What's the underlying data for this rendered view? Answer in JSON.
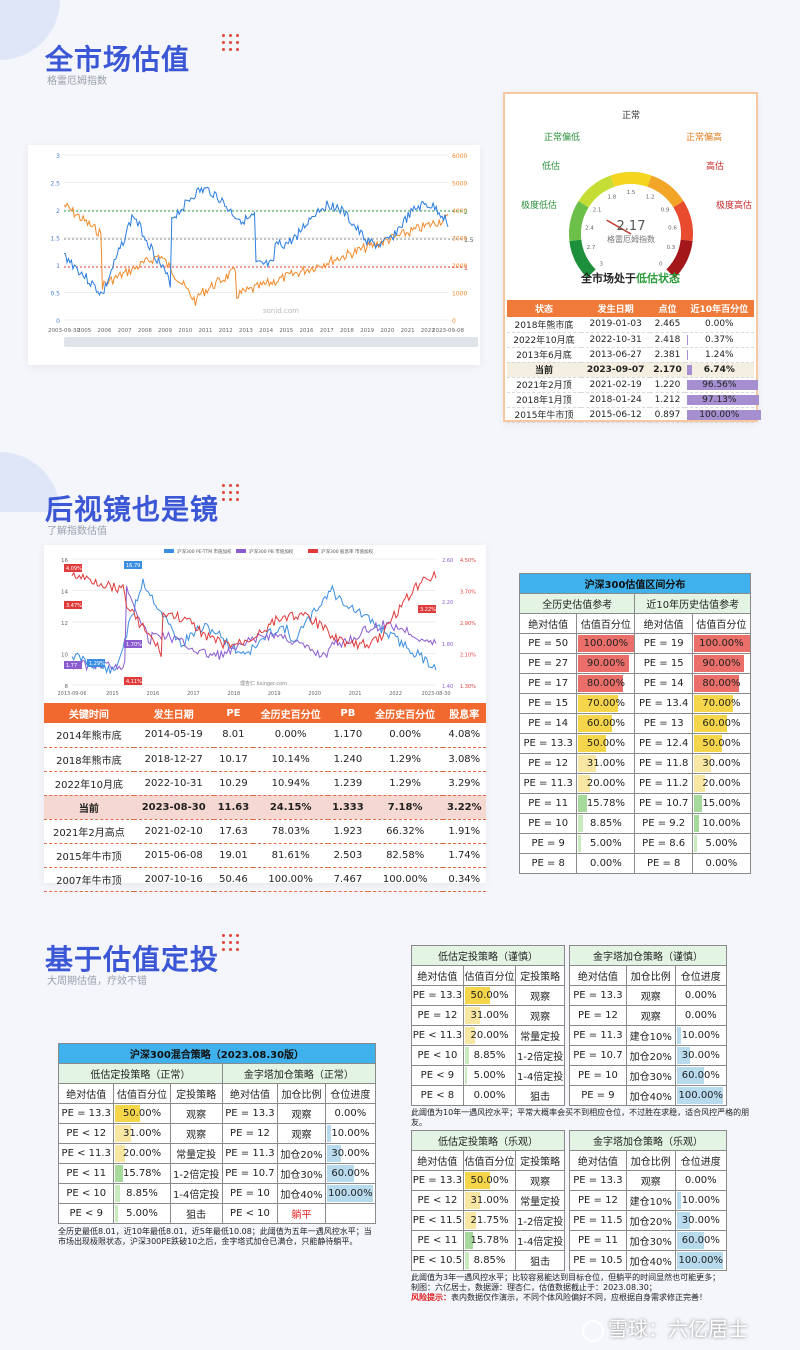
{
  "sections": [
    {
      "title": "全市场估值",
      "subtitle": "格雷厄姆指数"
    },
    {
      "title": "后视镜也是镜",
      "subtitle": "了解指数估值"
    },
    {
      "title": "基于估值定投",
      "subtitle": "大周期估值，疗效不错"
    }
  ],
  "chart1": {
    "left_ticks": [
      "3",
      "2.5",
      "2",
      "1.5",
      "1",
      "0.5",
      "0"
    ],
    "right_ticks": [
      "6000",
      "5000",
      "4000",
      "3000",
      "2000",
      "1000",
      "0"
    ],
    "x_ticks": [
      "2003-09-30",
      "2005",
      "2006",
      "2007",
      "2008",
      "2009",
      "2010",
      "2011",
      "2012",
      "2013",
      "2014",
      "2015",
      "2016",
      "2017",
      "2018",
      "2019",
      "2020",
      "2021",
      "2022",
      "2023-09-08"
    ],
    "markers": [
      "2",
      "1.5",
      "1"
    ],
    "watermark": "sonid.com"
  },
  "gauge": {
    "labels": {
      "normal": "正常",
      "normal_low": "正常偏低",
      "normal_high": "正常偏高",
      "low": "低估",
      "high": "高估",
      "very_low": "极度低估",
      "very_high": "极度高估"
    },
    "scale": [
      "3",
      "2.7",
      "2.4",
      "2.1",
      "1.8",
      "1.5",
      "1.2",
      "0.9",
      "0.6",
      "0.3",
      "0"
    ],
    "value": "2.17",
    "value_label": "格雷厄姆指数",
    "status_prefix": "全市场处于",
    "status": "低估状态",
    "colors": {
      "very_low": "#1e8f3a",
      "low": "#6cc04a",
      "normal_low": "#c6dd35",
      "normal": "#f6d51f",
      "normal_high": "#f2a526",
      "high": "#e94b2f",
      "very_high": "#a3171a"
    }
  },
  "graham_table": {
    "headers": [
      "状态",
      "发生日期",
      "点位",
      "近10年百分位"
    ],
    "rows": [
      {
        "state": "2018年熊市底",
        "date": "2019-01-03",
        "value": "2.465",
        "pct": "0.00%",
        "pct_num": 0
      },
      {
        "state": "2022年10月底",
        "date": "2022-10-31",
        "value": "2.418",
        "pct": "0.37%",
        "pct_num": 0.37
      },
      {
        "state": "2013年6月底",
        "date": "2013-06-27",
        "value": "2.381",
        "pct": "1.24%",
        "pct_num": 1.24
      },
      {
        "state": "当前",
        "date": "2023-09-07",
        "value": "2.170",
        "pct": "6.74%",
        "pct_num": 6.74
      },
      {
        "state": "2021年2月顶",
        "date": "2021-02-19",
        "value": "1.220",
        "pct": "96.56%",
        "pct_num": 96.56
      },
      {
        "state": "2018年1月顶",
        "date": "2018-01-24",
        "value": "1.212",
        "pct": "97.13%",
        "pct_num": 97.13
      },
      {
        "state": "2015年牛市顶",
        "date": "2015-06-12",
        "value": "0.897",
        "pct": "100.00%",
        "pct_num": 100
      }
    ]
  },
  "chart2": {
    "legend": [
      "沪深300 PE-TTM 市值加权",
      "沪深300 PB 市值加权",
      "沪深300 股息率 市值加权"
    ],
    "left_ticks": [
      "16",
      "14",
      "12",
      "10",
      "8"
    ],
    "right_ticks1": [
      "2.60",
      "2.20",
      "1.80",
      "1.40"
    ],
    "right_ticks2": [
      "4.50%",
      "3.70%",
      "2.90%",
      "2.10%",
      "1.30%"
    ],
    "x_ticks": [
      "2013-09-06",
      "2015",
      "2016",
      "2017",
      "2018",
      "2019",
      "2020",
      "2021",
      "2022",
      "2023-08-30"
    ],
    "watermark": "理杏仁 lixinger.com",
    "labels": [
      "16.79",
      "4.09%",
      "3.47%",
      "1.77",
      "1.29%",
      "1.70%",
      "4.11%",
      "3.22%"
    ]
  },
  "pe_table": {
    "headers": [
      "关键时间",
      "发生日期",
      "PE",
      "全历史百分位",
      "PB",
      "全历史百分位",
      "股息率"
    ],
    "rows": [
      [
        "2014年熊市底",
        "2014-05-19",
        "8.01",
        "0.00%",
        "1.170",
        "0.00%",
        "4.08%"
      ],
      [
        "2018年熊市底",
        "2018-12-27",
        "10.17",
        "10.14%",
        "1.240",
        "1.29%",
        "3.08%"
      ],
      [
        "2022年10月底",
        "2022-10-31",
        "10.29",
        "10.94%",
        "1.239",
        "1.29%",
        "3.29%"
      ],
      [
        "当前",
        "2023-08-30",
        "11.63",
        "24.15%",
        "1.333",
        "7.18%",
        "3.22%"
      ],
      [
        "2021年2月高点",
        "2021-02-10",
        "17.63",
        "78.03%",
        "1.923",
        "66.32%",
        "1.91%"
      ],
      [
        "2015年牛市顶",
        "2015-06-08",
        "19.01",
        "81.61%",
        "2.503",
        "82.58%",
        "1.74%"
      ],
      [
        "2007年牛市顶",
        "2007-10-16",
        "50.46",
        "100.00%",
        "7.467",
        "100.00%",
        "0.34%"
      ]
    ],
    "current_index": 3
  },
  "dist_table": {
    "title": "沪深300估值区间分布",
    "sub_headers": [
      "全历史估值参考",
      "近10年历史估值参考"
    ],
    "col_headers": [
      "绝对估值",
      "估值百分位",
      "绝对估值",
      "估值百分位"
    ],
    "rows": [
      {
        "a": "PE = 50",
        "ap": "100.00%",
        "an": 100,
        "b": "PE = 19",
        "bp": "100.00%",
        "bn": 100
      },
      {
        "a": "PE = 27",
        "ap": "90.00%",
        "an": 90,
        "b": "PE = 15",
        "bp": "90.00%",
        "bn": 90
      },
      {
        "a": "PE = 17",
        "ap": "80.00%",
        "an": 80,
        "b": "PE = 14",
        "bp": "80.00%",
        "bn": 80
      },
      {
        "a": "PE = 15",
        "ap": "70.00%",
        "an": 70,
        "b": "PE = 13.4",
        "bp": "70.00%",
        "bn": 70
      },
      {
        "a": "PE = 14",
        "ap": "60.00%",
        "an": 60,
        "b": "PE = 13",
        "bp": "60.00%",
        "bn": 60
      },
      {
        "a": "PE = 13.3",
        "ap": "50.00%",
        "an": 50,
        "b": "PE = 12.4",
        "bp": "50.00%",
        "bn": 50
      },
      {
        "a": "PE = 12",
        "ap": "31.00%",
        "an": 31,
        "b": "PE = 11.8",
        "bp": "30.00%",
        "bn": 30
      },
      {
        "a": "PE = 11.3",
        "ap": "20.00%",
        "an": 20,
        "b": "PE = 11.2",
        "bp": "20.00%",
        "bn": 20
      },
      {
        "a": "PE = 11",
        "ap": "15.78%",
        "an": 15.78,
        "b": "PE = 10.7",
        "bp": "15.00%",
        "bn": 15
      },
      {
        "a": "PE = 10",
        "ap": "8.85%",
        "an": 8.85,
        "b": "PE = 9.2",
        "bp": "10.00%",
        "bn": 10
      },
      {
        "a": "PE = 9",
        "ap": "5.00%",
        "an": 5,
        "b": "PE = 8.6",
        "bp": "5.00%",
        "bn": 5
      },
      {
        "a": "PE = 8",
        "ap": "0.00%",
        "an": 0,
        "b": "PE = 8",
        "bp": "0.00%",
        "bn": 0
      }
    ]
  },
  "mix": {
    "title": "沪深300混合策略（2023.08.30版）",
    "left_title": "低估定投策略（正常）",
    "right_title": "金字塔加仓策略（正常）",
    "cols_left": [
      "绝对估值",
      "估值百分位",
      "定投策略"
    ],
    "cols_right": [
      "绝对估值",
      "加仓比例",
      "仓位进度"
    ],
    "rows": [
      {
        "a": "PE = 13.3",
        "p": "50.00%",
        "pn": 50,
        "s": "观察",
        "b": "PE = 13.3",
        "r": "观察",
        "g": "0.00%",
        "gn": 0
      },
      {
        "a": "PE < 12",
        "p": "31.00%",
        "pn": 31,
        "s": "观察",
        "b": "PE = 12",
        "r": "观察",
        "g": "10.00%",
        "gn": 10
      },
      {
        "a": "PE < 11.3",
        "p": "20.00%",
        "pn": 20,
        "s": "常量定投",
        "b": "PE = 11.3",
        "r": "加仓20%",
        "g": "30.00%",
        "gn": 30
      },
      {
        "a": "PE < 11",
        "p": "15.78%",
        "pn": 15.78,
        "s": "1-2倍定投",
        "b": "PE = 10.7",
        "r": "加仓30%",
        "g": "60.00%",
        "gn": 60
      },
      {
        "a": "PE < 10",
        "p": "8.85%",
        "pn": 8.85,
        "s": "1-4倍定投",
        "b": "PE = 10",
        "r": "加仓40%",
        "g": "100.00%",
        "gn": 100
      },
      {
        "a": "PE < 9",
        "p": "5.00%",
        "pn": 5,
        "s": "狙击",
        "b": "PE < 10",
        "r": "躺平",
        "g": "",
        "gn": 0
      }
    ],
    "note": "全历史最低8.01，近10年最低8.01，近5年最低10.08；此阈值为五年一遇风控水平；当市场出现极限状态，沪深300PE跌破10之后，金字塔式加仓已满仓，只能静待躺平。"
  },
  "careful": {
    "left_title": "低估定投策略（谨慎）",
    "right_title": "金字塔加仓策略（谨慎）",
    "cols_left": [
      "绝对估值",
      "估值百分位",
      "定投策略"
    ],
    "cols_right": [
      "绝对估值",
      "加仓比例",
      "仓位进度"
    ],
    "rows": [
      {
        "a": "PE = 13.3",
        "p": "50.00%",
        "pn": 50,
        "s": "观察",
        "b": "PE = 13.3",
        "r": "观察",
        "g": "0.00%",
        "gn": 0
      },
      {
        "a": "PE = 12",
        "p": "31.00%",
        "pn": 31,
        "s": "观察",
        "b": "PE = 12",
        "r": "观察",
        "g": "0.00%",
        "gn": 0
      },
      {
        "a": "PE < 11.3",
        "p": "20.00%",
        "pn": 20,
        "s": "常量定投",
        "b": "PE = 11.3",
        "r": "建仓10%",
        "g": "10.00%",
        "gn": 10
      },
      {
        "a": "PE < 10",
        "p": "8.85%",
        "pn": 8.85,
        "s": "1-2倍定投",
        "b": "PE = 10.7",
        "r": "加仓20%",
        "g": "30.00%",
        "gn": 30
      },
      {
        "a": "PE < 9",
        "p": "5.00%",
        "pn": 5,
        "s": "1-4倍定投",
        "b": "PE = 10",
        "r": "加仓30%",
        "g": "60.00%",
        "gn": 60
      },
      {
        "a": "PE < 8",
        "p": "0.00%",
        "pn": 0,
        "s": "狙击",
        "b": "PE = 9",
        "r": "加仓40%",
        "g": "100.00%",
        "gn": 100
      }
    ],
    "note": "此阈值为10年一遇风控水平；平常大概率会买不到相应仓位，不过胜在求稳，适合风控严格的朋友。"
  },
  "optimistic": {
    "left_title": "低估定投策略（乐观）",
    "right_title": "金字塔加仓策略（乐观）",
    "cols_left": [
      "绝对估值",
      "估值百分位",
      "定投策略"
    ],
    "cols_right": [
      "绝对估值",
      "加仓比例",
      "仓位进度"
    ],
    "rows": [
      {
        "a": "PE = 13.3",
        "p": "50.00%",
        "pn": 50,
        "s": "观察",
        "b": "PE = 13.3",
        "r": "观察",
        "g": "0.00%",
        "gn": 0
      },
      {
        "a": "PE < 12",
        "p": "31.00%",
        "pn": 31,
        "s": "常量定投",
        "b": "PE = 12",
        "r": "建仓10%",
        "g": "10.00%",
        "gn": 10
      },
      {
        "a": "PE < 11.5",
        "p": "21.75%",
        "pn": 21.75,
        "s": "1-2倍定投",
        "b": "PE = 11.5",
        "r": "加仓20%",
        "g": "30.00%",
        "gn": 30
      },
      {
        "a": "PE < 11",
        "p": "15.78%",
        "pn": 15.78,
        "s": "1-4倍定投",
        "b": "PE = 11",
        "r": "加仓30%",
        "g": "60.00%",
        "gn": 60
      },
      {
        "a": "PE < 10.5",
        "p": "8.85%",
        "pn": 8.85,
        "s": "狙击",
        "b": "PE = 10.5",
        "r": "加仓40%",
        "g": "100.00%",
        "gn": 100
      }
    ],
    "note1": "此阈值为3年一遇风控水平；比较容易能达到目标仓位，但躺平的时间显然也可能更多；",
    "note2": "制图：六亿居士，数据源：理杏仁，估值数据截止于：2023.08.30；",
    "risk_label": "风险提示：",
    "risk_text": "表内数据仅作演示，不同个体风险偏好不同，应根据自身需求修正完善！"
  },
  "footer": "雪球：六亿居士"
}
